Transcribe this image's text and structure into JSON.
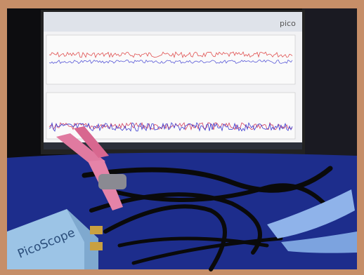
{
  "screen": {
    "logo": "pico"
  },
  "device": {
    "label": "PicoScope"
  }
}
